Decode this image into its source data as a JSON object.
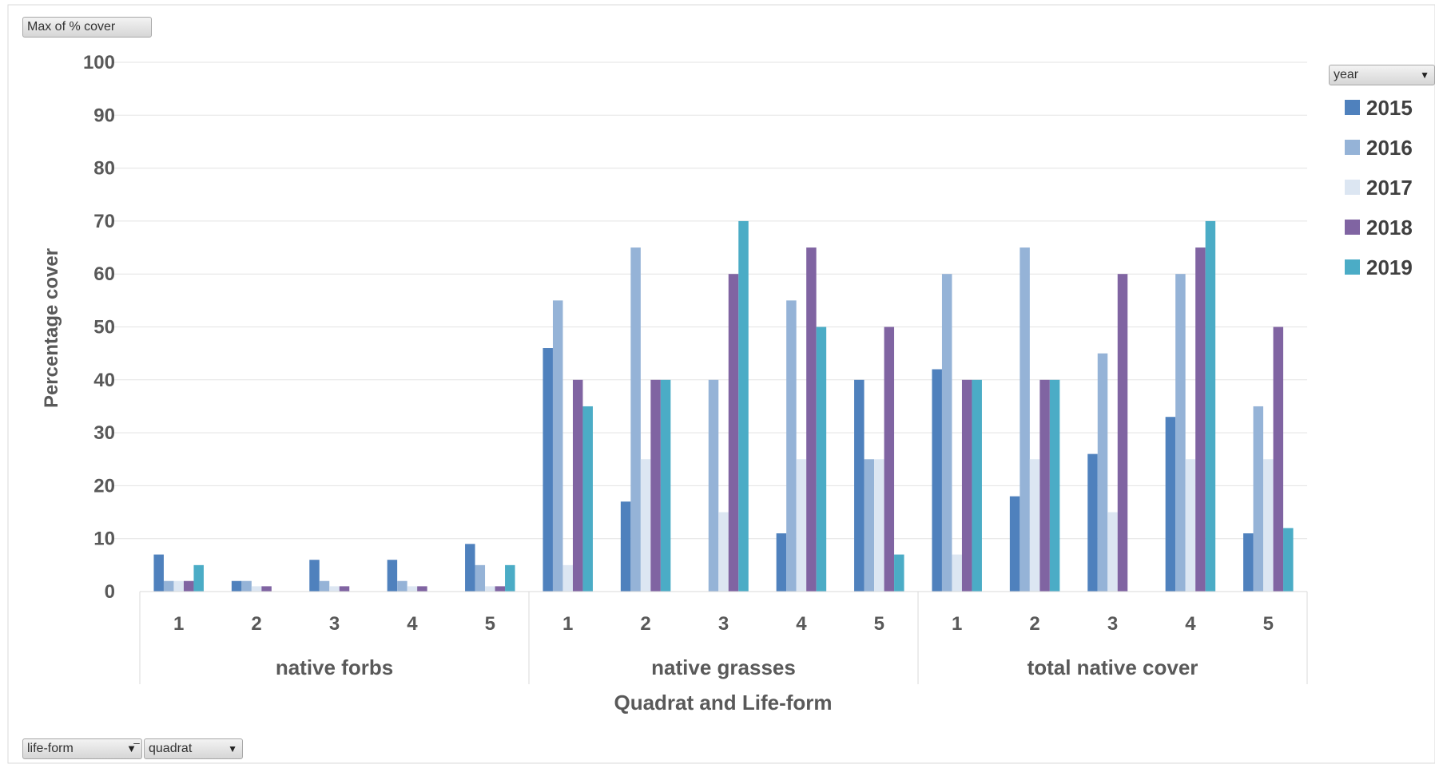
{
  "field_buttons": {
    "value_field": "Max of % cover",
    "legend_field": "year",
    "axis_field_1": "life-form",
    "axis_field_2": "quadrat"
  },
  "icons": {
    "dropdown": "chevron-down-icon",
    "filter": "filter-icon"
  },
  "chart_data": {
    "type": "bar",
    "title": "",
    "xlabel": "Quadrat and Life-form",
    "ylabel": "Percentage cover",
    "ylim": [
      0,
      100
    ],
    "yticks": [
      0,
      10,
      20,
      30,
      40,
      50,
      60,
      70,
      80,
      90,
      100
    ],
    "grid": true,
    "legend_position": "right",
    "groups": [
      {
        "name": "native forbs",
        "categories": [
          "1",
          "2",
          "3",
          "4",
          "5"
        ]
      },
      {
        "name": "native grasses",
        "categories": [
          "1",
          "2",
          "3",
          "4",
          "5"
        ]
      },
      {
        "name": "total native cover",
        "categories": [
          "1",
          "2",
          "3",
          "4",
          "5"
        ]
      }
    ],
    "series": [
      {
        "name": "2015",
        "color": "#4f81bd",
        "values": [
          7,
          2,
          6,
          6,
          9,
          46,
          17,
          0,
          11,
          40,
          42,
          18,
          26,
          33,
          11
        ]
      },
      {
        "name": "2016",
        "color": "#95b3d7",
        "values": [
          2,
          2,
          2,
          2,
          5,
          55,
          65,
          40,
          55,
          25,
          60,
          65,
          45,
          60,
          35
        ]
      },
      {
        "name": "2017",
        "color": "#dce6f2",
        "values": [
          2,
          1,
          1,
          1,
          1,
          5,
          25,
          15,
          25,
          25,
          7,
          25,
          15,
          25,
          25
        ]
      },
      {
        "name": "2018",
        "color": "#8064a2",
        "values": [
          2,
          1,
          1,
          1,
          1,
          40,
          40,
          60,
          65,
          50,
          40,
          40,
          60,
          65,
          50
        ]
      },
      {
        "name": "2019",
        "color": "#4bacc6",
        "values": [
          5,
          0,
          0,
          0,
          5,
          35,
          40,
          70,
          50,
          7,
          40,
          40,
          0,
          70,
          12
        ]
      }
    ]
  }
}
